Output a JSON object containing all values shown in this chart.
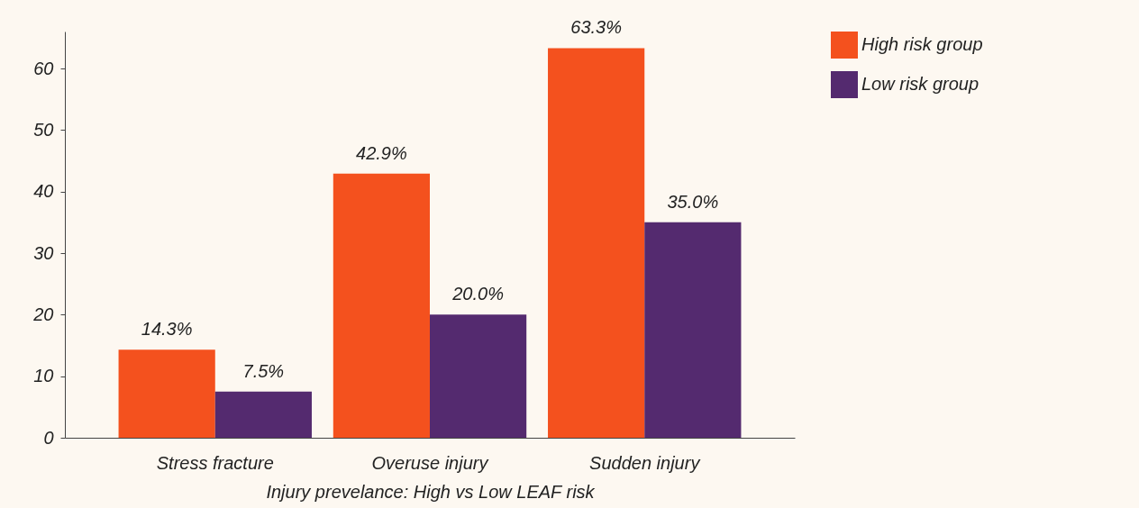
{
  "chart_data": {
    "type": "bar",
    "xlabel": "Injury prevelance: High vs Low LEAF risk",
    "categories": [
      "Stress fracture",
      "Overuse injury",
      "Sudden injury"
    ],
    "series": [
      {
        "name": "High risk group",
        "color": "#f4511e",
        "values": [
          14.3,
          42.9,
          63.3
        ],
        "value_labels": [
          "14.3%",
          "42.9%",
          "63.3%"
        ]
      },
      {
        "name": "Low risk group",
        "color": "#542a6f",
        "values": [
          7.5,
          20.0,
          35.0
        ],
        "value_labels": [
          "7.5%",
          "20.0%",
          "35.0%"
        ]
      }
    ],
    "ylim": [
      0,
      66
    ],
    "yticks": [
      0,
      10,
      20,
      30,
      40,
      50,
      60
    ],
    "grid": false,
    "legend": "right"
  }
}
